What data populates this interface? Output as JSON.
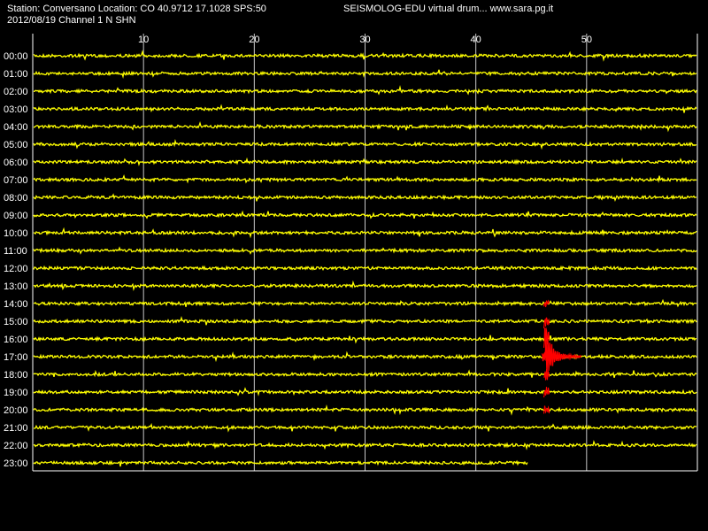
{
  "header": {
    "station_line": "Station: Conversano Location: CO 40.9712 17.1028 SPS:50",
    "date_line": "2012/08/19  Channel 1 N SHN",
    "title": "SEISMOLOG-EDU virtual drum... www.sara.pg.it"
  },
  "drum": {
    "minute_ticks": [
      "10",
      "20",
      "30",
      "40",
      "50"
    ],
    "hours": [
      "00:00",
      "01:00",
      "02:00",
      "03:00",
      "04:00",
      "05:00",
      "06:00",
      "07:00",
      "08:00",
      "09:00",
      "10:00",
      "11:00",
      "12:00",
      "13:00",
      "14:00",
      "15:00",
      "16:00",
      "17:00",
      "18:00",
      "19:00",
      "20:00",
      "21:00",
      "22:00",
      "23:00"
    ],
    "trace_color": "#ffff00",
    "event_color": "#ff0000",
    "last_trace_fraction": 0.745,
    "event": {
      "hour_row": "17:00",
      "minute": 46.3
    }
  }
}
